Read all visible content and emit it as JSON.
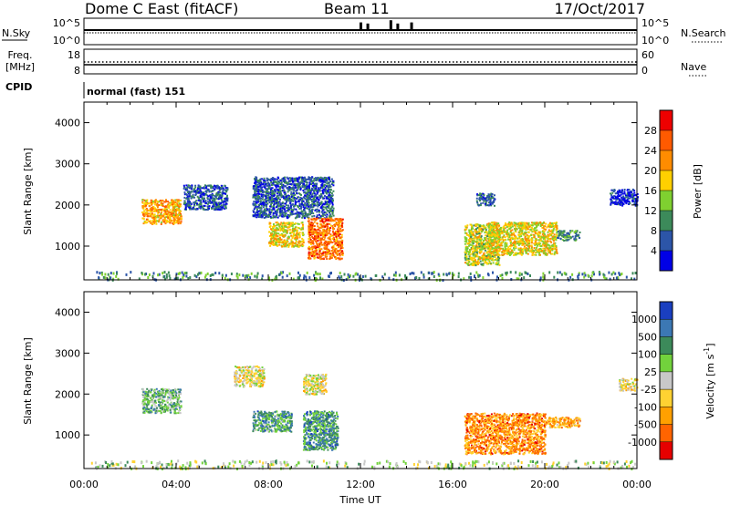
{
  "header": {
    "station": "Dome C East (fitACF)",
    "beam": "Beam 11",
    "date": "17/Oct/2017"
  },
  "noise_panel": {
    "left_label": "N.Sky",
    "right_label": "N.Search",
    "left_ticks": [
      "10^5",
      "10^0"
    ],
    "right_ticks": [
      "10^5",
      "10^0"
    ],
    "spikes": [
      {
        "time_h": 12.0,
        "level": 0.7
      },
      {
        "time_h": 12.3,
        "level": 0.6
      },
      {
        "time_h": 13.3,
        "level": 0.9
      },
      {
        "time_h": 13.6,
        "level": 0.6
      },
      {
        "time_h": 14.2,
        "level": 0.7
      }
    ]
  },
  "freq_panel": {
    "left_label_1": "Freq.",
    "left_label_2": "[MHz]",
    "left_ticks": [
      "18",
      "8"
    ],
    "right_label": "Nave",
    "right_ticks": [
      "60",
      "0"
    ],
    "cpid_label": "CPID",
    "cpid_text": "normal (fast) 151"
  },
  "chart_data": [
    {
      "type": "heatmap",
      "name": "Power",
      "ylabel": "Slant Range [km]",
      "xlabel": "Time UT",
      "ylim": [
        180,
        4500
      ],
      "xlim": [
        0,
        24
      ],
      "yticks": [
        1000,
        2000,
        3000,
        4000
      ],
      "xticks": [
        "00:00",
        "04:00",
        "08:00",
        "12:00",
        "16:00",
        "20:00",
        "00:00"
      ],
      "colorbar": {
        "label": "Power [dB]",
        "ticks": [
          "28",
          "24",
          "20",
          "16",
          "12",
          "8",
          "4"
        ],
        "colors": [
          "#ee0000",
          "#ff5a00",
          "#ff8c00",
          "#ffd000",
          "#7fd030",
          "#3c8a5a",
          "#2c55a8",
          "#0000e6"
        ]
      },
      "regions": [
        {
          "t0": 2.5,
          "t1": 4.2,
          "r0": 1550,
          "r1": 2150,
          "level": 0.65
        },
        {
          "t0": 4.3,
          "t1": 6.2,
          "r0": 1900,
          "r1": 2500,
          "level": 0.2
        },
        {
          "t0": 7.3,
          "t1": 10.8,
          "r0": 1700,
          "r1": 2700,
          "level": 0.2
        },
        {
          "t0": 8.0,
          "t1": 9.5,
          "r0": 1000,
          "r1": 1600,
          "level": 0.55
        },
        {
          "t0": 9.7,
          "t1": 11.2,
          "r0": 700,
          "r1": 1700,
          "level": 0.75
        },
        {
          "t0": 16.5,
          "t1": 18.0,
          "r0": 550,
          "r1": 1550,
          "level": 0.5
        },
        {
          "t0": 17.5,
          "t1": 20.5,
          "r0": 800,
          "r1": 1600,
          "level": 0.55
        },
        {
          "t0": 20.5,
          "t1": 21.5,
          "r0": 1150,
          "r1": 1400,
          "level": 0.3
        },
        {
          "t0": 22.8,
          "t1": 24.0,
          "r0": 2000,
          "r1": 2400,
          "level": 0.1
        },
        {
          "t0": 17.0,
          "t1": 17.8,
          "r0": 2000,
          "r1": 2300,
          "level": 0.2
        },
        {
          "t0": 0.3,
          "t1": 24.0,
          "r0": 200,
          "r1": 400,
          "level": 0.3
        }
      ]
    },
    {
      "type": "heatmap",
      "name": "Velocity",
      "ylabel": "Slant Range [km]",
      "xlabel": "Time UT",
      "ylim": [
        180,
        4500
      ],
      "xlim": [
        0,
        24
      ],
      "yticks": [
        1000,
        2000,
        3000,
        4000
      ],
      "xticks": [
        "00:00",
        "04:00",
        "08:00",
        "12:00",
        "16:00",
        "20:00",
        "00:00"
      ],
      "colorbar": {
        "label": "Velocity [m s^-1]",
        "ticks": [
          "1000",
          "500",
          "100",
          "25",
          "-25",
          "-100",
          "-500",
          "-1000"
        ],
        "colors": [
          "#1a3fc0",
          "#3c78b4",
          "#3c8a5a",
          "#72d23c",
          "#c8c8c8",
          "#ffd232",
          "#ffa000",
          "#ff6400",
          "#e60000"
        ]
      },
      "regions": [
        {
          "t0": 2.5,
          "t1": 4.2,
          "r0": 1550,
          "r1": 2150,
          "level": 0.65
        },
        {
          "t0": 6.5,
          "t1": 7.8,
          "r0": 2200,
          "r1": 2700,
          "level": 0.45
        },
        {
          "t0": 7.3,
          "t1": 9.0,
          "r0": 1100,
          "r1": 1600,
          "level": 0.72
        },
        {
          "t0": 9.5,
          "t1": 11.0,
          "r0": 650,
          "r1": 1600,
          "level": 0.75
        },
        {
          "t0": 9.5,
          "t1": 10.5,
          "r0": 2000,
          "r1": 2500,
          "level": 0.45
        },
        {
          "t0": 16.5,
          "t1": 20.0,
          "r0": 550,
          "r1": 1550,
          "level": 0.25
        },
        {
          "t0": 20.0,
          "t1": 21.5,
          "r0": 1200,
          "r1": 1450,
          "level": 0.3
        },
        {
          "t0": 23.2,
          "t1": 24.0,
          "r0": 2100,
          "r1": 2400,
          "level": 0.45
        },
        {
          "t0": 0.3,
          "t1": 24.0,
          "r0": 200,
          "r1": 400,
          "level": 0.55
        }
      ]
    }
  ]
}
